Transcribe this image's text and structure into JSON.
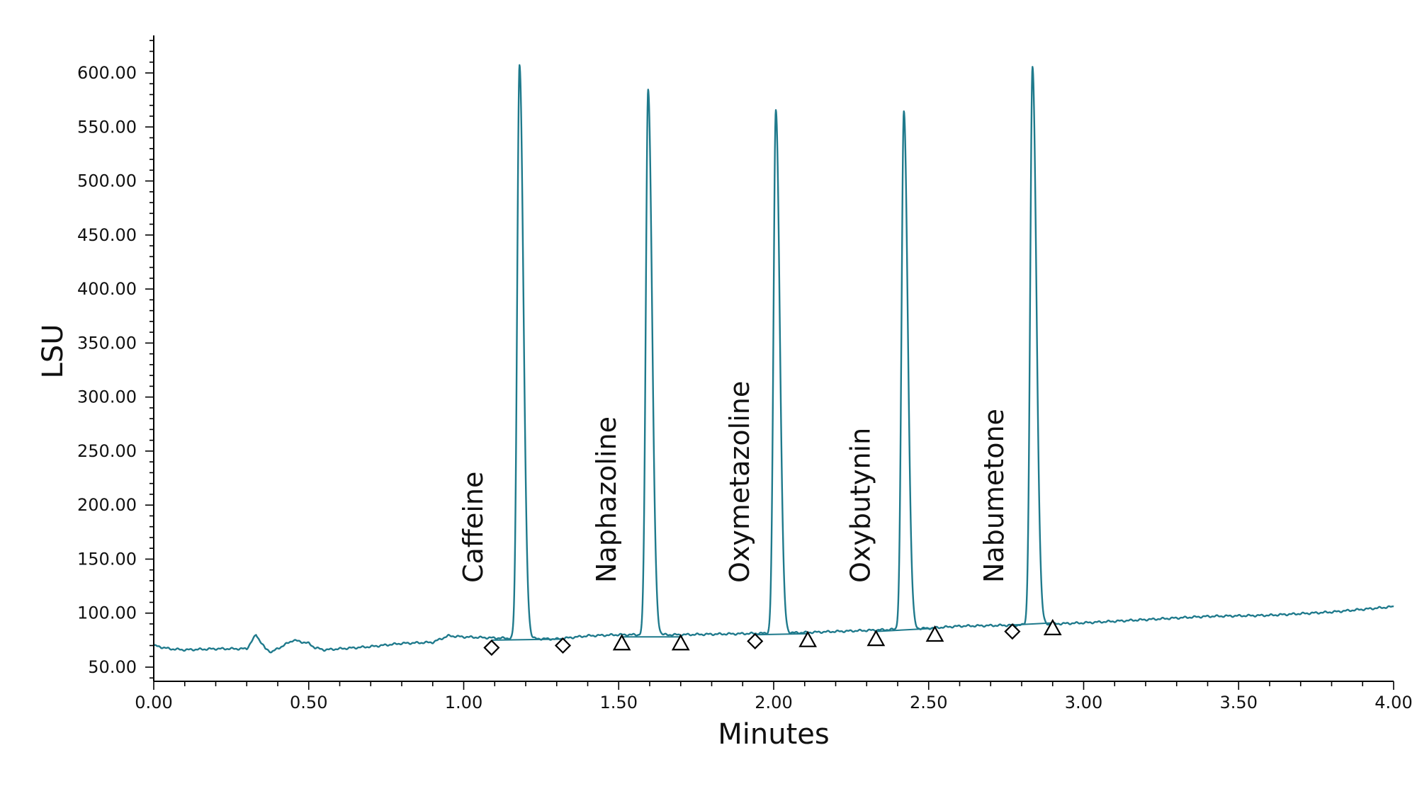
{
  "chart_data": {
    "type": "line",
    "xlabel": "Minutes",
    "ylabel": "LSU",
    "xlim": [
      0,
      4
    ],
    "ylim": [
      40,
      640
    ],
    "x_ticks": [
      0,
      0.5,
      1.0,
      1.5,
      2.0,
      2.5,
      3.0,
      3.5,
      4.0
    ],
    "x_tick_labels": [
      "0.00",
      "0.50",
      "1.00",
      "1.50",
      "2.00",
      "2.50",
      "3.00",
      "3.50",
      "4.00"
    ],
    "y_ticks": [
      50,
      100,
      150,
      200,
      250,
      300,
      350,
      400,
      450,
      500,
      550,
      600
    ],
    "y_tick_labels": [
      "50.00",
      "100.00",
      "150.00",
      "200.00",
      "250.00",
      "300.00",
      "350.00",
      "400.00",
      "450.00",
      "500.00",
      "550.00",
      "600.00"
    ],
    "grid": false,
    "colors": {
      "trace": "#1f7a8c",
      "markers": "#000000"
    },
    "series": [
      {
        "baseline_points": [
          [
            0.0,
            70
          ],
          [
            0.05,
            67
          ],
          [
            0.1,
            66
          ],
          [
            0.2,
            67
          ],
          [
            0.3,
            67
          ],
          [
            0.33,
            80
          ],
          [
            0.36,
            67
          ],
          [
            0.38,
            64
          ],
          [
            0.45,
            75
          ],
          [
            0.5,
            72
          ],
          [
            0.52,
            68
          ],
          [
            0.55,
            66
          ],
          [
            0.7,
            69
          ],
          [
            0.8,
            72
          ],
          [
            0.9,
            73
          ],
          [
            0.95,
            79
          ],
          [
            1.0,
            78
          ],
          [
            1.1,
            77
          ],
          [
            1.3,
            76
          ],
          [
            1.4,
            79
          ],
          [
            1.5,
            80
          ],
          [
            1.7,
            80
          ],
          [
            1.9,
            81
          ],
          [
            2.1,
            82
          ],
          [
            2.3,
            84
          ],
          [
            2.5,
            86
          ],
          [
            2.6,
            88
          ],
          [
            2.8,
            89
          ],
          [
            3.0,
            91
          ],
          [
            3.2,
            94
          ],
          [
            3.4,
            97
          ],
          [
            3.6,
            98
          ],
          [
            3.8,
            101
          ],
          [
            4.0,
            106
          ]
        ],
        "peaks": [
          {
            "name": "Caffeine",
            "rt": 1.18,
            "height": 608,
            "sigma_left": 0.0075,
            "sigma_right": 0.0125
          },
          {
            "name": "Naphazoline",
            "rt": 1.595,
            "height": 585,
            "sigma_left": 0.0075,
            "sigma_right": 0.0125
          },
          {
            "name": "Oxymetazoline",
            "rt": 2.007,
            "height": 566,
            "sigma_left": 0.0075,
            "sigma_right": 0.0125
          },
          {
            "name": "Oxybutynin",
            "rt": 2.42,
            "height": 564,
            "sigma_left": 0.0075,
            "sigma_right": 0.0125
          },
          {
            "name": "Nabumetone",
            "rt": 2.835,
            "height": 605,
            "sigma_left": 0.0075,
            "sigma_right": 0.0125
          }
        ]
      }
    ],
    "integration_baselines": [
      {
        "start": 1.09,
        "end": 1.32,
        "y_start": 75,
        "y_end": 76
      },
      {
        "start": 1.51,
        "end": 1.7,
        "y_start": 78,
        "y_end": 78
      },
      {
        "start": 1.94,
        "end": 2.11,
        "y_start": 80,
        "y_end": 81
      },
      {
        "start": 2.33,
        "end": 2.52,
        "y_start": 83,
        "y_end": 86
      },
      {
        "start": 2.77,
        "end": 2.9,
        "y_start": 89,
        "y_end": 91
      }
    ],
    "markers": [
      {
        "shape": "diamond",
        "x": 1.09,
        "y": 68
      },
      {
        "shape": "diamond",
        "x": 1.32,
        "y": 70
      },
      {
        "shape": "triangle",
        "x": 1.51,
        "y": 72
      },
      {
        "shape": "triangle",
        "x": 1.7,
        "y": 72
      },
      {
        "shape": "diamond",
        "x": 1.94,
        "y": 74
      },
      {
        "shape": "triangle",
        "x": 2.11,
        "y": 75
      },
      {
        "shape": "triangle",
        "x": 2.33,
        "y": 76
      },
      {
        "shape": "triangle",
        "x": 2.52,
        "y": 80
      },
      {
        "shape": "diamond",
        "x": 2.77,
        "y": 83
      },
      {
        "shape": "triangle",
        "x": 2.9,
        "y": 86
      }
    ],
    "peak_labels": [
      {
        "text": "Caffeine",
        "x": 1.06,
        "y": 128
      },
      {
        "text": "Naphazoline",
        "x": 1.49,
        "y": 128
      },
      {
        "text": "Oxymetazoline",
        "x": 1.92,
        "y": 128
      },
      {
        "text": "Oxybutynin",
        "x": 2.31,
        "y": 128
      },
      {
        "text": "Nabumetone",
        "x": 2.74,
        "y": 128
      }
    ]
  }
}
